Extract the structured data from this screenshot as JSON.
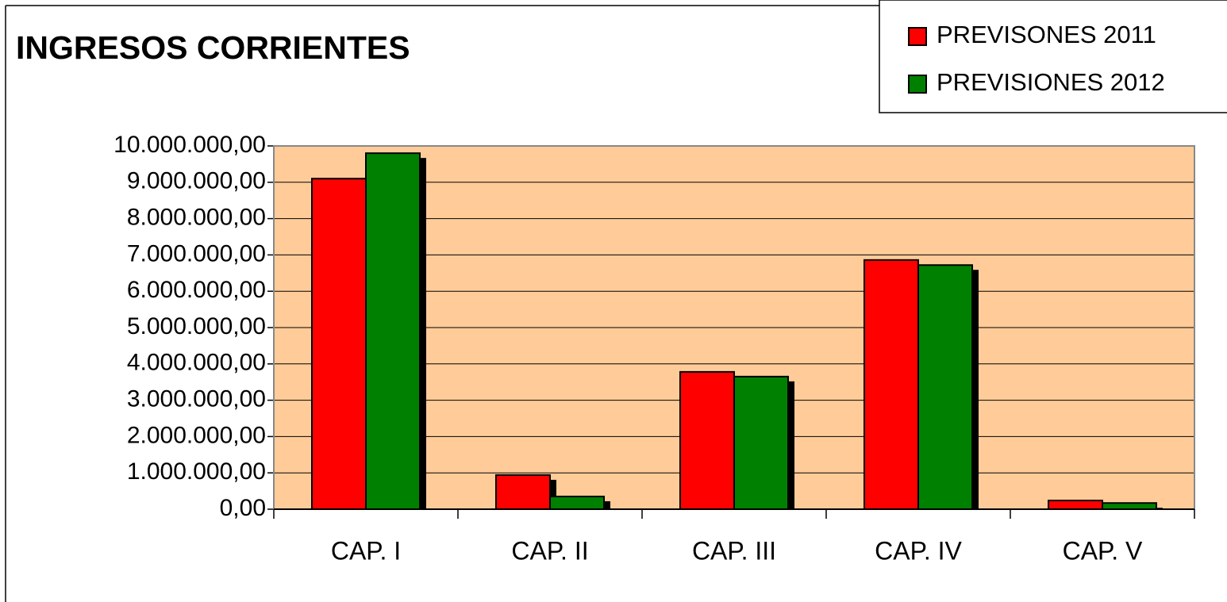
{
  "chart_data": {
    "type": "bar",
    "title": "INGRESOS CORRIENTES",
    "categories": [
      "CAP. I",
      "CAP. II",
      "CAP. III",
      "CAP. IV",
      "CAP. V"
    ],
    "series": [
      {
        "name": "PREVISONES 2011",
        "color": "#ff0000",
        "values": [
          9100000,
          940000,
          3780000,
          6860000,
          240000
        ]
      },
      {
        "name": "PREVISIONES 2012",
        "color": "#008000",
        "values": [
          9800000,
          350000,
          3650000,
          6720000,
          170000
        ]
      }
    ],
    "ylim": [
      0,
      10000000
    ],
    "yticks": [
      {
        "value": 0,
        "label": "0,00"
      },
      {
        "value": 1000000,
        "label": "1.000.000,00"
      },
      {
        "value": 2000000,
        "label": "2.000.000,00"
      },
      {
        "value": 3000000,
        "label": "3.000.000,00"
      },
      {
        "value": 4000000,
        "label": "4.000.000,00"
      },
      {
        "value": 5000000,
        "label": "5.000.000,00"
      },
      {
        "value": 6000000,
        "label": "6.000.000,00"
      },
      {
        "value": 7000000,
        "label": "7.000.000,00"
      },
      {
        "value": 8000000,
        "label": "8.000.000,00"
      },
      {
        "value": 9000000,
        "label": "9.000.000,00"
      },
      {
        "value": 10000000,
        "label": "10.000.000,00"
      }
    ],
    "grid": true,
    "legend": "top-right",
    "plot_background": "#ffcc99"
  }
}
